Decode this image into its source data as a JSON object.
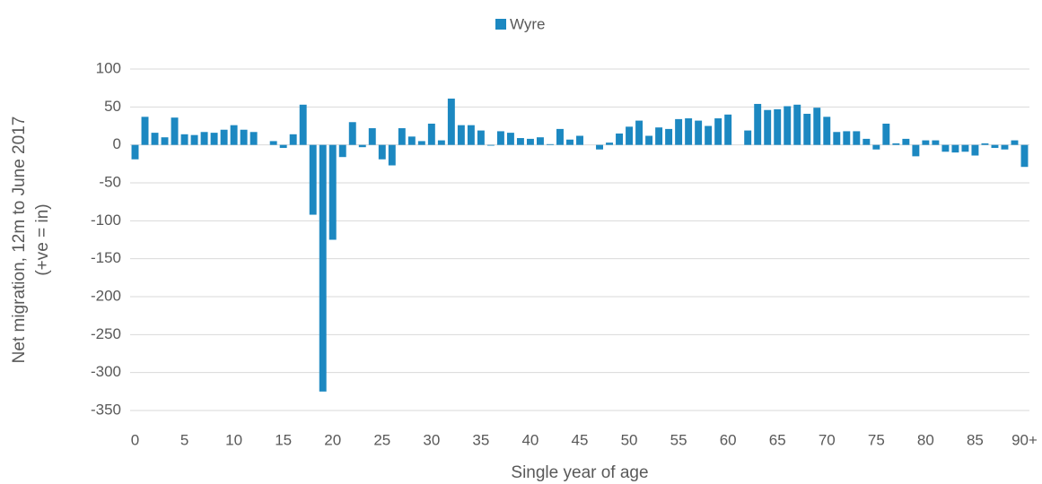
{
  "chart_data": {
    "type": "bar",
    "legend": "top",
    "x_label": "Single year of age",
    "y_label": [
      "Net migration, 12m to June 2017",
      "(+ve = in)"
    ],
    "categories": [
      "0",
      null,
      null,
      null,
      null,
      "5",
      null,
      null,
      null,
      null,
      "10",
      null,
      null,
      null,
      null,
      "15",
      null,
      null,
      null,
      null,
      "20",
      null,
      null,
      null,
      null,
      "25",
      null,
      null,
      null,
      null,
      "30",
      null,
      null,
      null,
      null,
      "35",
      null,
      null,
      null,
      null,
      "40",
      null,
      null,
      null,
      null,
      "45",
      null,
      null,
      null,
      null,
      "50",
      null,
      null,
      null,
      null,
      "55",
      null,
      null,
      null,
      null,
      "60",
      null,
      null,
      null,
      null,
      "65",
      null,
      null,
      null,
      null,
      "70",
      null,
      null,
      null,
      null,
      "75",
      null,
      null,
      null,
      null,
      "80",
      null,
      null,
      null,
      null,
      "85",
      null,
      null,
      null,
      null,
      "90+"
    ],
    "series": [
      {
        "name": "Wyre",
        "color": "#1c88c1",
        "values": [
          -19,
          37,
          16,
          10,
          36,
          14,
          13,
          17,
          16,
          20,
          26,
          20,
          17,
          0,
          5,
          -4,
          14,
          53,
          -92,
          -325,
          -125,
          -16,
          30,
          -3,
          22,
          -19,
          -27,
          22,
          11,
          5,
          28,
          6,
          61,
          26,
          26,
          19,
          -1,
          18,
          16,
          9,
          8,
          10,
          1,
          21,
          7,
          12,
          0,
          -6,
          3,
          15,
          24,
          32,
          12,
          23,
          21,
          34,
          35,
          32,
          25,
          35,
          40,
          0,
          19,
          54,
          46,
          47,
          51,
          53,
          41,
          49,
          37,
          17,
          18,
          18,
          8,
          -6,
          28,
          2,
          8,
          -15,
          6,
          6,
          -9,
          -10,
          -9,
          -14,
          2,
          -4,
          -6,
          6,
          -29
        ]
      }
    ],
    "ylim": [
      -350,
      100
    ],
    "yticks": [
      -350,
      -300,
      -250,
      -200,
      -150,
      -100,
      -50,
      0,
      50,
      100
    ],
    "grid": true
  }
}
